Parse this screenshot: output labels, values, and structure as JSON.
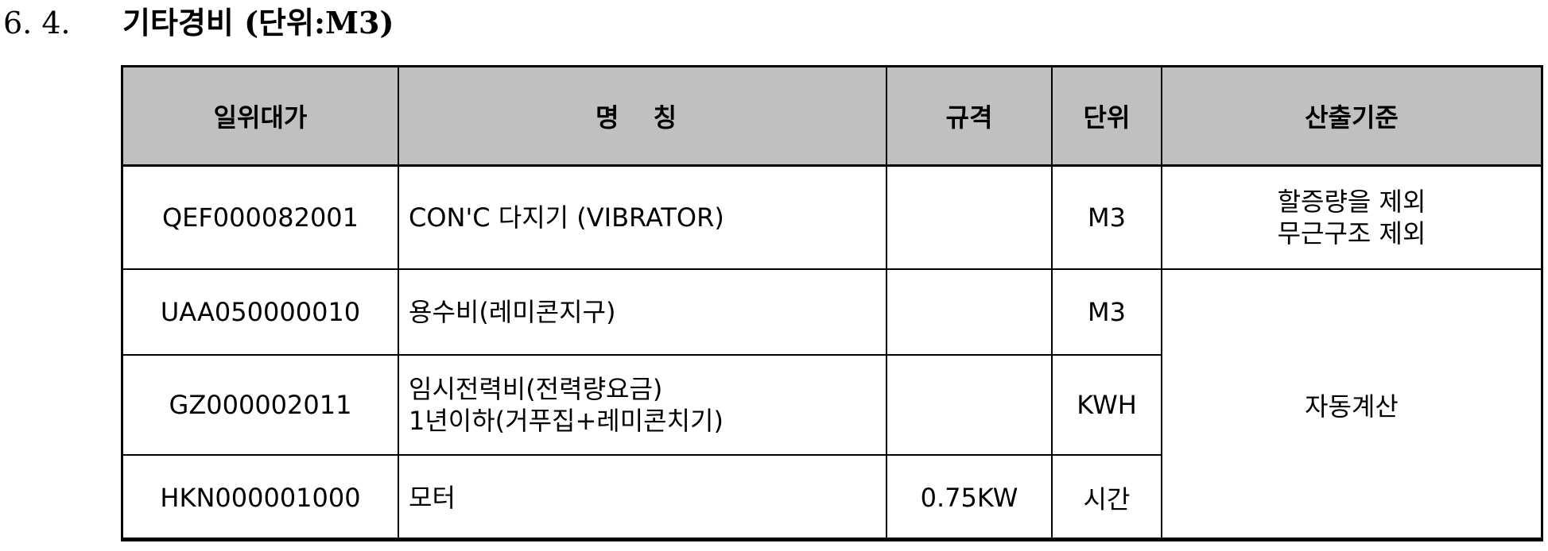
{
  "section": {
    "number": "6. 4.",
    "title": "기타경비 (단위:M3)"
  },
  "table": {
    "headers": [
      "일위대가",
      "명 칭",
      "규격",
      "단위",
      "산출기준"
    ],
    "rows": [
      {
        "code": "QEF000082001",
        "name_lines": [
          "CON'C 다지기 (VIBRATOR)"
        ],
        "spec": "",
        "unit": "M3",
        "basis_lines": [
          "할증량을 제외",
          "무근구조 제외"
        ]
      },
      {
        "code": "UAA050000010",
        "name_lines": [
          "용수비(레미콘지구)"
        ],
        "spec": "",
        "unit": "M3"
      },
      {
        "code": "GZ000002011",
        "name_lines": [
          "임시전력비(전력량요금)",
          "1년이하(거푸집+레미콘치기)"
        ],
        "spec": "",
        "unit": "KWH"
      },
      {
        "code": "HKN000001000",
        "name_lines": [
          "모터"
        ],
        "spec": "0.75KW",
        "unit": "시간"
      }
    ],
    "merged_basis": "자동계산"
  },
  "colors": {
    "header_bg": "#c0c0c0",
    "border": "#000000"
  }
}
